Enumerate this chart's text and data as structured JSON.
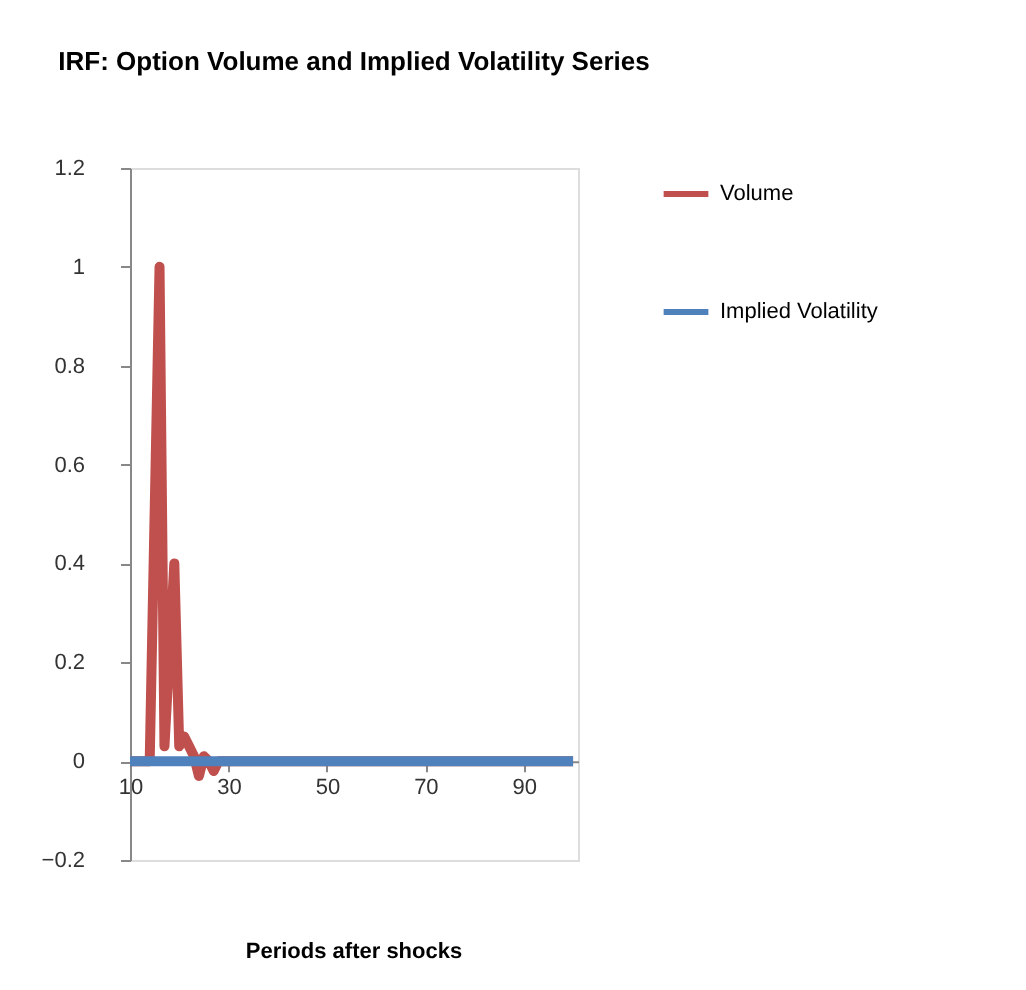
{
  "chart_data": {
    "type": "line",
    "title": "IRF: Option Volume and Implied Volatility Series",
    "xlabel": "Periods after shocks",
    "xlim": [
      10,
      101
    ],
    "xticks": [
      10,
      30,
      50,
      70,
      90
    ],
    "ylim": [
      -0.2,
      1.2
    ],
    "yticks": [
      -0.2,
      0,
      0.2,
      0.4,
      0.6,
      0.8,
      1,
      1.2
    ],
    "grid": false,
    "legend": "right",
    "marker": "none",
    "line_style": "solid",
    "series": [
      {
        "name": "Volume",
        "color": "#c0504d",
        "x": [
          10,
          14,
          16,
          17,
          19,
          20,
          21,
          22,
          23,
          24,
          25,
          26,
          27,
          28,
          100
        ],
        "values": [
          0,
          0,
          1.0,
          0.03,
          0.4,
          0.03,
          0.05,
          0.03,
          0.01,
          -0.03,
          0.01,
          0,
          -0.02,
          0,
          0
        ]
      },
      {
        "name": "Implied Volatility",
        "color": "#4f81bd",
        "x": [
          10,
          100
        ],
        "values": [
          0,
          0
        ]
      }
    ]
  }
}
